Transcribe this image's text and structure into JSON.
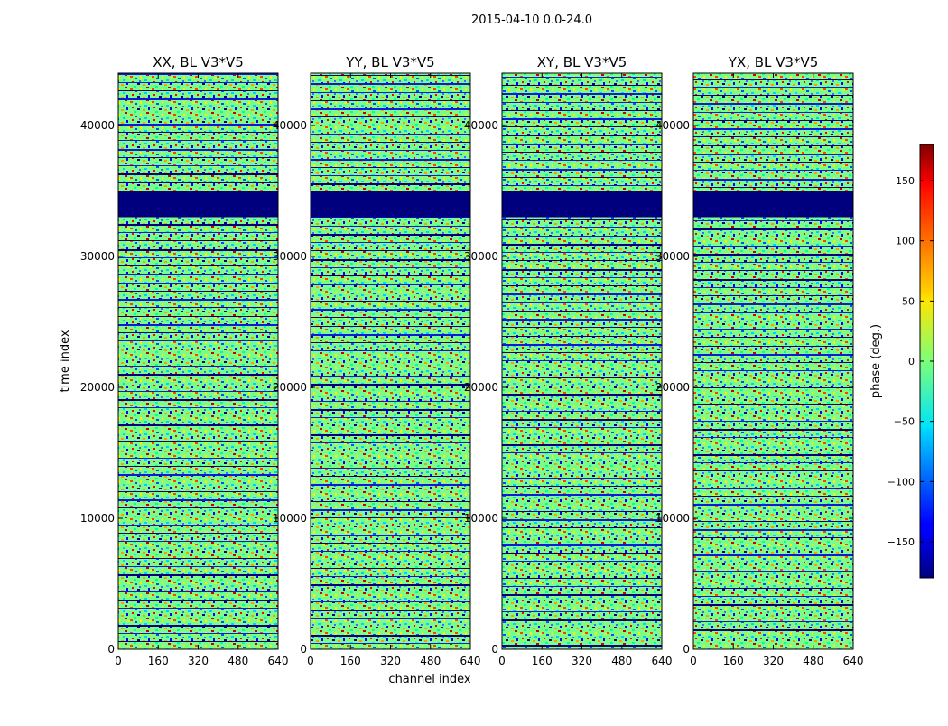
{
  "figure": {
    "suptitle": "2015-04-10 0.0-24.0"
  },
  "chart_data": {
    "type": "heatmap",
    "xlabel": "channel index",
    "ylabel": "time index",
    "xlim": [
      0,
      640
    ],
    "ylim": [
      0,
      44000
    ],
    "x_ticks": [
      0,
      160,
      320,
      480,
      640
    ],
    "y_ticks": [
      0,
      10000,
      20000,
      30000,
      40000
    ],
    "panels": [
      {
        "title": "XX, BL V3*V5",
        "correlation": "XX"
      },
      {
        "title": "YY, BL V3*V5",
        "correlation": "YY"
      },
      {
        "title": "XY, BL V3*V5",
        "correlation": "XY"
      },
      {
        "title": "YX, BL V3*V5",
        "correlation": "YX"
      }
    ],
    "flagged_time_ranges": [
      [
        33000,
        35000
      ]
    ],
    "colorbar": {
      "label": "phase (deg.)",
      "vmin": -180,
      "vmax": 180,
      "ticks": [
        150,
        100,
        50,
        0,
        -50,
        -100,
        -150
      ],
      "tick_labels": [
        "150",
        "100",
        "50",
        "0",
        "−50",
        "−100",
        "−150"
      ],
      "colormap": "jet"
    }
  }
}
